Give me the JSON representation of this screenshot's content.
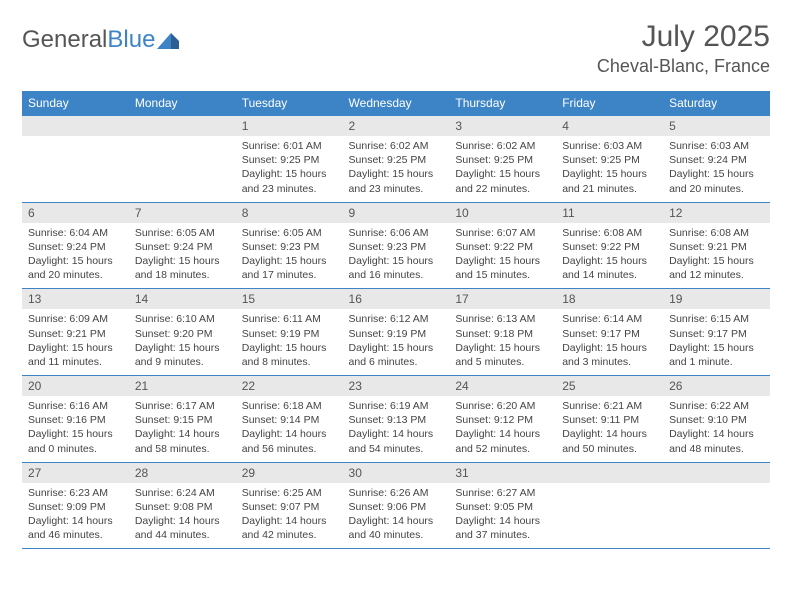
{
  "logo": {
    "word1": "General",
    "word2": "Blue"
  },
  "title": "July 2025",
  "location": "Cheval-Blanc, France",
  "colors": {
    "accent": "#3d84c6",
    "header_text": "#555",
    "cell_bg": "#e8e8e8"
  },
  "dow": [
    "Sunday",
    "Monday",
    "Tuesday",
    "Wednesday",
    "Thursday",
    "Friday",
    "Saturday"
  ],
  "weeks": [
    [
      null,
      null,
      {
        "n": "1",
        "sr": "6:01 AM",
        "ss": "9:25 PM",
        "dl": "15 hours and 23 minutes."
      },
      {
        "n": "2",
        "sr": "6:02 AM",
        "ss": "9:25 PM",
        "dl": "15 hours and 23 minutes."
      },
      {
        "n": "3",
        "sr": "6:02 AM",
        "ss": "9:25 PM",
        "dl": "15 hours and 22 minutes."
      },
      {
        "n": "4",
        "sr": "6:03 AM",
        "ss": "9:25 PM",
        "dl": "15 hours and 21 minutes."
      },
      {
        "n": "5",
        "sr": "6:03 AM",
        "ss": "9:24 PM",
        "dl": "15 hours and 20 minutes."
      }
    ],
    [
      {
        "n": "6",
        "sr": "6:04 AM",
        "ss": "9:24 PM",
        "dl": "15 hours and 20 minutes."
      },
      {
        "n": "7",
        "sr": "6:05 AM",
        "ss": "9:24 PM",
        "dl": "15 hours and 18 minutes."
      },
      {
        "n": "8",
        "sr": "6:05 AM",
        "ss": "9:23 PM",
        "dl": "15 hours and 17 minutes."
      },
      {
        "n": "9",
        "sr": "6:06 AM",
        "ss": "9:23 PM",
        "dl": "15 hours and 16 minutes."
      },
      {
        "n": "10",
        "sr": "6:07 AM",
        "ss": "9:22 PM",
        "dl": "15 hours and 15 minutes."
      },
      {
        "n": "11",
        "sr": "6:08 AM",
        "ss": "9:22 PM",
        "dl": "15 hours and 14 minutes."
      },
      {
        "n": "12",
        "sr": "6:08 AM",
        "ss": "9:21 PM",
        "dl": "15 hours and 12 minutes."
      }
    ],
    [
      {
        "n": "13",
        "sr": "6:09 AM",
        "ss": "9:21 PM",
        "dl": "15 hours and 11 minutes."
      },
      {
        "n": "14",
        "sr": "6:10 AM",
        "ss": "9:20 PM",
        "dl": "15 hours and 9 minutes."
      },
      {
        "n": "15",
        "sr": "6:11 AM",
        "ss": "9:19 PM",
        "dl": "15 hours and 8 minutes."
      },
      {
        "n": "16",
        "sr": "6:12 AM",
        "ss": "9:19 PM",
        "dl": "15 hours and 6 minutes."
      },
      {
        "n": "17",
        "sr": "6:13 AM",
        "ss": "9:18 PM",
        "dl": "15 hours and 5 minutes."
      },
      {
        "n": "18",
        "sr": "6:14 AM",
        "ss": "9:17 PM",
        "dl": "15 hours and 3 minutes."
      },
      {
        "n": "19",
        "sr": "6:15 AM",
        "ss": "9:17 PM",
        "dl": "15 hours and 1 minute."
      }
    ],
    [
      {
        "n": "20",
        "sr": "6:16 AM",
        "ss": "9:16 PM",
        "dl": "15 hours and 0 minutes."
      },
      {
        "n": "21",
        "sr": "6:17 AM",
        "ss": "9:15 PM",
        "dl": "14 hours and 58 minutes."
      },
      {
        "n": "22",
        "sr": "6:18 AM",
        "ss": "9:14 PM",
        "dl": "14 hours and 56 minutes."
      },
      {
        "n": "23",
        "sr": "6:19 AM",
        "ss": "9:13 PM",
        "dl": "14 hours and 54 minutes."
      },
      {
        "n": "24",
        "sr": "6:20 AM",
        "ss": "9:12 PM",
        "dl": "14 hours and 52 minutes."
      },
      {
        "n": "25",
        "sr": "6:21 AM",
        "ss": "9:11 PM",
        "dl": "14 hours and 50 minutes."
      },
      {
        "n": "26",
        "sr": "6:22 AM",
        "ss": "9:10 PM",
        "dl": "14 hours and 48 minutes."
      }
    ],
    [
      {
        "n": "27",
        "sr": "6:23 AM",
        "ss": "9:09 PM",
        "dl": "14 hours and 46 minutes."
      },
      {
        "n": "28",
        "sr": "6:24 AM",
        "ss": "9:08 PM",
        "dl": "14 hours and 44 minutes."
      },
      {
        "n": "29",
        "sr": "6:25 AM",
        "ss": "9:07 PM",
        "dl": "14 hours and 42 minutes."
      },
      {
        "n": "30",
        "sr": "6:26 AM",
        "ss": "9:06 PM",
        "dl": "14 hours and 40 minutes."
      },
      {
        "n": "31",
        "sr": "6:27 AM",
        "ss": "9:05 PM",
        "dl": "14 hours and 37 minutes."
      },
      null,
      null
    ]
  ],
  "labels": {
    "sunrise": "Sunrise:",
    "sunset": "Sunset:",
    "daylight": "Daylight:"
  }
}
